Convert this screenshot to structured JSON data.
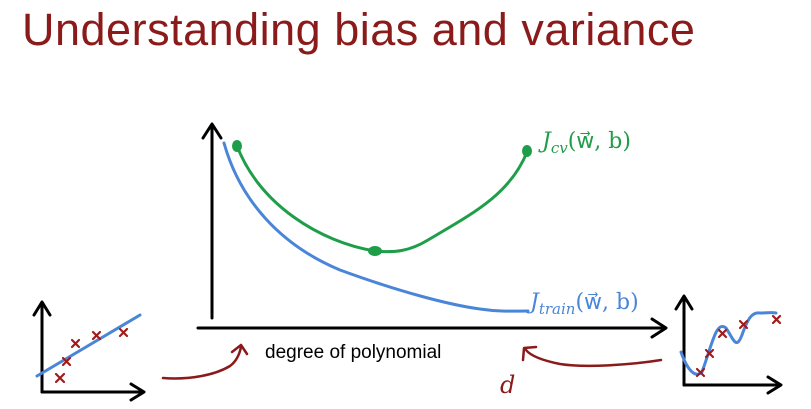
{
  "slide": {
    "title": "Understanding bias and variance"
  },
  "main_plot": {
    "x_axis_label": "degree of polynomial",
    "x_symbol": "d",
    "curves": [
      {
        "label_J": "J",
        "label_sub": "cv",
        "label_args": "(w⃗, b)",
        "color": "#1fa24a"
      },
      {
        "label_J": "J",
        "label_sub": "train",
        "label_args": "(w⃗, b)",
        "color": "#4a86d8"
      }
    ]
  },
  "colors": {
    "title": "#8b1a1a",
    "axes": "#000000",
    "arrow": "#8b1a1a",
    "data_point": "#a01c1c",
    "fit_line": "#4a86d8"
  },
  "icons": [
    "data-point-x-icon",
    "axis-arrow-icon",
    "pointer-arrow-icon",
    "dot-marker-icon"
  ]
}
